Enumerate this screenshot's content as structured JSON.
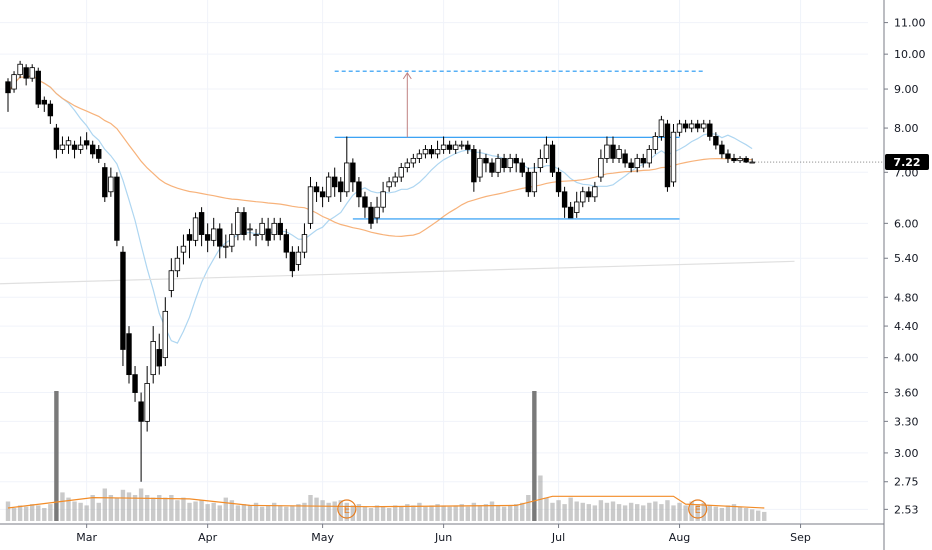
{
  "chart_data": {
    "type": "candlestick",
    "scale": "log",
    "ylim": [
      2.45,
      11.6
    ],
    "grid": true,
    "y_ticks": [
      "11.00",
      "10.00",
      "9.00",
      "8.00",
      "7.00",
      "6.00",
      "5.40",
      "4.80",
      "4.40",
      "4.00",
      "3.60",
      "3.30",
      "3.00",
      "2.75",
      "2.53"
    ],
    "y_tick_values": [
      11.0,
      10.0,
      9.0,
      8.0,
      7.0,
      6.0,
      5.4,
      4.8,
      4.4,
      4.0,
      3.6,
      3.3,
      3.0,
      2.75,
      2.53
    ],
    "x_ticks": [
      "Mar",
      "Apr",
      "May",
      "Jun",
      "Jul",
      "Aug",
      "Sep"
    ],
    "x_tick_index": [
      13,
      33,
      52,
      72,
      91,
      111,
      131
    ],
    "last_price": "7.22",
    "colors": {
      "up_fill": "#ffffff",
      "down_fill": "#000000",
      "wick": "#000000",
      "ma_short": "#aed6f1",
      "ma_mid": "#f7b27a",
      "ma_long": "#e0e0e0",
      "range_lines": "#2196f3",
      "target_line": "#2196f3",
      "arrow": "#c08080",
      "volume": "#9e9e9e",
      "volume_spike": "#7a7a7a",
      "volume_ma": "#f28c28",
      "earnings": "#e67e22",
      "price_tag": "#000000",
      "grid": "#f0f3fa"
    },
    "range": {
      "top": 7.78,
      "bottom": 6.08,
      "start_index": 54,
      "end_index": 111
    },
    "target": {
      "price": 9.5,
      "start_index": 54,
      "end_index": 115
    },
    "arrow": {
      "index": 66,
      "from": 7.78,
      "to": 9.45
    },
    "earnings_markers": [
      {
        "index": 56,
        "label": "E"
      },
      {
        "index": 114,
        "label": "E"
      }
    ],
    "candles": [
      [
        9.2,
        8.9,
        9.3,
        8.4
      ],
      [
        9.0,
        9.4,
        9.5,
        8.9
      ],
      [
        9.4,
        9.7,
        9.8,
        9.3
      ],
      [
        9.6,
        9.3,
        9.7,
        9.1
      ],
      [
        9.3,
        9.6,
        9.7,
        9.2
      ],
      [
        9.5,
        8.6,
        9.6,
        8.5
      ],
      [
        8.7,
        8.6,
        8.8,
        8.4
      ],
      [
        8.6,
        8.3,
        8.7,
        8.1
      ],
      [
        8.0,
        7.5,
        8.1,
        7.3
      ],
      [
        7.5,
        7.6,
        7.8,
        7.4
      ],
      [
        7.6,
        7.7,
        7.8,
        7.4
      ],
      [
        7.6,
        7.5,
        7.7,
        7.3
      ],
      [
        7.5,
        7.6,
        7.8,
        7.4
      ],
      [
        7.7,
        7.6,
        7.9,
        7.5
      ],
      [
        7.6,
        7.4,
        7.7,
        7.3
      ],
      [
        7.5,
        7.3,
        7.6,
        7.2
      ],
      [
        7.1,
        6.5,
        7.2,
        6.4
      ],
      [
        6.6,
        6.9,
        7.1,
        6.5
      ],
      [
        6.9,
        5.7,
        7.0,
        5.6
      ],
      [
        5.5,
        4.1,
        5.6,
        3.9
      ],
      [
        4.3,
        3.8,
        4.4,
        3.7
      ],
      [
        3.8,
        3.6,
        3.9,
        3.5
      ],
      [
        3.5,
        3.3,
        3.6,
        2.75
      ],
      [
        3.3,
        3.7,
        3.9,
        3.2
      ],
      [
        3.8,
        4.2,
        4.4,
        3.7
      ],
      [
        4.1,
        3.9,
        4.3,
        3.8
      ],
      [
        4.0,
        4.6,
        4.8,
        3.9
      ],
      [
        4.9,
        5.2,
        5.4,
        4.8
      ],
      [
        5.2,
        5.4,
        5.6,
        5.1
      ],
      [
        5.5,
        5.6,
        5.8,
        5.3
      ],
      [
        5.8,
        5.7,
        5.9,
        5.4
      ],
      [
        5.7,
        6.1,
        6.2,
        5.6
      ],
      [
        6.2,
        5.8,
        6.3,
        5.6
      ],
      [
        5.8,
        5.7,
        6.0,
        5.5
      ],
      [
        5.7,
        5.9,
        6.1,
        5.6
      ],
      [
        5.9,
        5.6,
        6.0,
        5.4
      ],
      [
        5.6,
        5.6,
        5.8,
        5.4
      ],
      [
        5.6,
        5.8,
        6.0,
        5.5
      ],
      [
        5.8,
        6.2,
        6.3,
        5.7
      ],
      [
        6.2,
        5.8,
        6.3,
        5.7
      ],
      [
        5.9,
        5.9,
        6.0,
        5.7
      ],
      [
        5.8,
        5.8,
        5.9,
        5.6
      ],
      [
        5.8,
        6.0,
        6.1,
        5.7
      ],
      [
        5.9,
        5.7,
        6.1,
        5.6
      ],
      [
        5.8,
        6.0,
        6.1,
        5.7
      ],
      [
        6.0,
        5.8,
        6.1,
        5.7
      ],
      [
        5.8,
        5.5,
        5.9,
        5.4
      ],
      [
        5.5,
        5.2,
        5.6,
        5.1
      ],
      [
        5.3,
        5.5,
        5.6,
        5.2
      ],
      [
        5.5,
        5.8,
        6.0,
        5.4
      ],
      [
        6.0,
        6.7,
        6.9,
        5.9
      ],
      [
        6.7,
        6.6,
        6.8,
        6.4
      ],
      [
        6.6,
        6.5,
        6.7,
        6.3
      ],
      [
        6.5,
        6.9,
        7.0,
        6.4
      ],
      [
        6.9,
        6.7,
        7.1,
        6.5
      ],
      [
        6.8,
        6.6,
        6.9,
        6.4
      ],
      [
        6.6,
        7.2,
        7.8,
        6.5
      ],
      [
        7.2,
        6.8,
        7.3,
        6.6
      ],
      [
        6.8,
        6.5,
        6.9,
        6.3
      ],
      [
        6.5,
        6.3,
        6.6,
        6.1
      ],
      [
        6.3,
        6.0,
        6.4,
        5.9
      ],
      [
        6.1,
        6.3,
        6.5,
        6.0
      ],
      [
        6.3,
        6.6,
        6.8,
        6.2
      ],
      [
        6.7,
        6.8,
        6.9,
        6.6
      ],
      [
        6.8,
        6.9,
        7.0,
        6.7
      ],
      [
        6.9,
        7.1,
        7.2,
        6.8
      ],
      [
        7.1,
        7.2,
        7.3,
        7.0
      ],
      [
        7.2,
        7.3,
        7.4,
        7.1
      ],
      [
        7.3,
        7.4,
        7.5,
        7.2
      ],
      [
        7.4,
        7.5,
        7.6,
        7.3
      ],
      [
        7.5,
        7.4,
        7.6,
        7.3
      ],
      [
        7.4,
        7.5,
        7.7,
        7.3
      ],
      [
        7.5,
        7.6,
        7.8,
        7.4
      ],
      [
        7.6,
        7.5,
        7.7,
        7.4
      ],
      [
        7.5,
        7.6,
        7.7,
        7.4
      ],
      [
        7.6,
        7.6,
        7.7,
        7.5
      ],
      [
        7.6,
        7.5,
        7.7,
        7.4
      ],
      [
        7.5,
        6.8,
        7.6,
        6.6
      ],
      [
        6.9,
        7.3,
        7.5,
        6.8
      ],
      [
        7.3,
        7.2,
        7.4,
        7.0
      ],
      [
        7.2,
        7.0,
        7.3,
        6.9
      ],
      [
        7.0,
        7.3,
        7.4,
        6.9
      ],
      [
        7.3,
        7.1,
        7.4,
        7.0
      ],
      [
        7.1,
        7.3,
        7.4,
        7.0
      ],
      [
        7.3,
        7.2,
        7.4,
        7.0
      ],
      [
        7.2,
        7.0,
        7.3,
        6.9
      ],
      [
        7.0,
        6.6,
        7.1,
        6.5
      ],
      [
        6.6,
        7.0,
        7.2,
        6.5
      ],
      [
        7.1,
        7.3,
        7.5,
        7.0
      ],
      [
        7.3,
        7.6,
        7.8,
        7.2
      ],
      [
        7.6,
        7.0,
        7.7,
        6.9
      ],
      [
        7.0,
        6.6,
        7.1,
        6.5
      ],
      [
        6.6,
        6.3,
        6.7,
        6.1
      ],
      [
        6.3,
        6.1,
        6.4,
        6.1
      ],
      [
        6.2,
        6.4,
        6.6,
        6.1
      ],
      [
        6.4,
        6.6,
        6.7,
        6.3
      ],
      [
        6.6,
        6.5,
        6.7,
        6.4
      ],
      [
        6.5,
        6.7,
        6.8,
        6.4
      ],
      [
        6.9,
        7.3,
        7.5,
        6.8
      ],
      [
        7.3,
        7.6,
        7.8,
        7.2
      ],
      [
        7.6,
        7.3,
        7.8,
        7.2
      ],
      [
        7.3,
        7.5,
        7.6,
        7.2
      ],
      [
        7.4,
        7.2,
        7.5,
        7.1
      ],
      [
        7.2,
        7.1,
        7.3,
        7.0
      ],
      [
        7.1,
        7.3,
        7.4,
        7.0
      ],
      [
        7.3,
        7.2,
        7.4,
        7.1
      ],
      [
        7.2,
        7.5,
        7.6,
        7.1
      ],
      [
        7.5,
        7.8,
        7.9,
        7.4
      ],
      [
        7.8,
        8.2,
        8.3,
        7.7
      ],
      [
        8.1,
        6.7,
        8.2,
        6.6
      ],
      [
        6.8,
        7.9,
        8.1,
        6.7
      ],
      [
        7.9,
        8.1,
        8.2,
        7.8
      ],
      [
        8.1,
        8.0,
        8.2,
        7.9
      ],
      [
        8.0,
        8.1,
        8.2,
        7.9
      ],
      [
        8.1,
        8.0,
        8.2,
        7.9
      ],
      [
        8.0,
        8.1,
        8.2,
        7.9
      ],
      [
        8.1,
        7.8,
        8.2,
        7.7
      ],
      [
        7.8,
        7.6,
        7.9,
        7.5
      ],
      [
        7.6,
        7.4,
        7.7,
        7.3
      ],
      [
        7.4,
        7.3,
        7.5,
        7.2
      ],
      [
        7.3,
        7.25,
        7.4,
        7.2
      ],
      [
        7.25,
        7.3,
        7.35,
        7.2
      ],
      [
        7.3,
        7.22,
        7.35,
        7.2
      ],
      [
        7.22,
        7.22,
        7.3,
        7.2
      ]
    ],
    "volume": [
      0.15,
      0.1,
      0.12,
      0.11,
      0.13,
      0.12,
      0.1,
      0.13,
      1.0,
      0.22,
      0.18,
      0.15,
      0.14,
      0.12,
      0.2,
      0.14,
      0.25,
      0.2,
      0.18,
      0.24,
      0.22,
      0.2,
      0.25,
      0.2,
      0.18,
      0.2,
      0.18,
      0.2,
      0.16,
      0.18,
      0.14,
      0.15,
      0.16,
      0.13,
      0.14,
      0.12,
      0.18,
      0.16,
      0.12,
      0.13,
      0.12,
      0.14,
      0.11,
      0.12,
      0.14,
      0.12,
      0.11,
      0.12,
      0.13,
      0.14,
      0.2,
      0.18,
      0.16,
      0.14,
      0.15,
      0.16,
      0.14,
      0.12,
      0.13,
      0.11,
      0.1,
      0.12,
      0.11,
      0.1,
      0.12,
      0.11,
      0.13,
      0.12,
      0.14,
      0.11,
      0.12,
      0.13,
      0.12,
      0.11,
      0.12,
      0.13,
      0.11,
      0.14,
      0.12,
      0.13,
      0.15,
      0.12,
      0.11,
      0.12,
      0.13,
      0.14,
      0.2,
      1.0,
      0.35,
      0.18,
      0.14,
      0.16,
      0.13,
      0.18,
      0.15,
      0.14,
      0.13,
      0.12,
      0.16,
      0.14,
      0.15,
      0.13,
      0.12,
      0.14,
      0.13,
      0.12,
      0.14,
      0.15,
      0.13,
      0.16,
      0.12,
      0.14,
      0.12,
      0.15,
      0.13,
      0.14,
      0.12,
      0.11,
      0.1,
      0.12,
      0.13,
      0.11,
      0.1,
      0.09,
      0.08,
      0.07
    ],
    "volume_spike_index": [
      8,
      87
    ],
    "volume_ma_segments": [
      [
        0,
        0.1
      ],
      [
        14,
        0.18
      ],
      [
        30,
        0.17
      ],
      [
        40,
        0.12
      ],
      [
        60,
        0.11
      ],
      [
        84,
        0.12
      ],
      [
        90,
        0.19
      ],
      [
        110,
        0.19
      ],
      [
        112,
        0.13
      ],
      [
        125,
        0.1
      ]
    ]
  }
}
